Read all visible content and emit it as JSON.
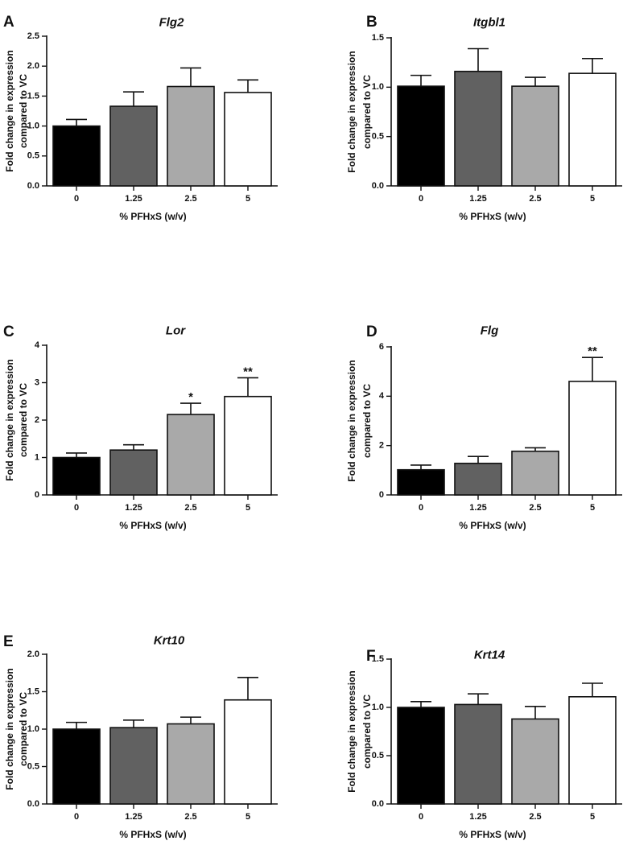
{
  "chart_data": [
    {
      "type": "bar",
      "panel": "A",
      "title": "Flg2",
      "xlabel": "%  PFHxS (w/v)",
      "ylabel_lines": [
        "Fold  change in expression",
        "compared to VC"
      ],
      "categories": [
        "0",
        "1.25",
        "2.5",
        "5"
      ],
      "values": [
        1.0,
        1.33,
        1.66,
        1.56
      ],
      "errors": [
        0.11,
        0.24,
        0.31,
        0.21
      ],
      "significance": [
        "",
        "",
        "",
        ""
      ],
      "ylim": [
        0,
        2.5
      ],
      "yticks": [
        0.0,
        0.5,
        1.0,
        1.5,
        2.0,
        2.5
      ],
      "ytick_labels": [
        "0.0",
        "0.5",
        "1.0",
        "1.5",
        "2.0",
        "2.5"
      ],
      "bar_colors": [
        "#000000",
        "#616161",
        "#a9a9a9",
        "#ffffff"
      ],
      "grid": false
    },
    {
      "type": "bar",
      "panel": "B",
      "title": "Itgbl1",
      "xlabel": "%  PFHxS (w/v)",
      "ylabel_lines": [
        "Fold  change in expression",
        "compared to VC"
      ],
      "categories": [
        "0",
        "1.25",
        "2.5",
        "5"
      ],
      "values": [
        1.01,
        1.16,
        1.01,
        1.14
      ],
      "errors": [
        0.11,
        0.23,
        0.09,
        0.15
      ],
      "significance": [
        "",
        "",
        "",
        ""
      ],
      "ylim": [
        0,
        1.5
      ],
      "yticks": [
        0.0,
        0.5,
        1.0,
        1.5
      ],
      "ytick_labels": [
        "0.0",
        "0.5",
        "1.0",
        "1.5"
      ],
      "bar_colors": [
        "#000000",
        "#616161",
        "#a9a9a9",
        "#ffffff"
      ],
      "grid": false
    },
    {
      "type": "bar",
      "panel": "C",
      "title": "Lor",
      "xlabel": "%  PFHxS (w/v)",
      "ylabel_lines": [
        "Fold  change in expression",
        "compared to VC"
      ],
      "categories": [
        "0",
        "1.25",
        "2.5",
        "5"
      ],
      "values": [
        1.0,
        1.2,
        2.15,
        2.63
      ],
      "errors": [
        0.12,
        0.14,
        0.3,
        0.5
      ],
      "significance": [
        "",
        "",
        "*",
        "**"
      ],
      "ylim": [
        0,
        4
      ],
      "yticks": [
        0,
        1,
        2,
        3,
        4
      ],
      "ytick_labels": [
        "0",
        "1",
        "2",
        "3",
        "4"
      ],
      "bar_colors": [
        "#000000",
        "#616161",
        "#a9a9a9",
        "#ffffff"
      ],
      "grid": false
    },
    {
      "type": "bar",
      "panel": "D",
      "title": "Flg",
      "xlabel": "%  PFHxS (w/v)",
      "ylabel_lines": [
        "Fold  change in expression",
        "compared to VC"
      ],
      "categories": [
        "0",
        "1.25",
        "2.5",
        "5"
      ],
      "values": [
        1.02,
        1.28,
        1.77,
        4.6
      ],
      "errors": [
        0.19,
        0.28,
        0.14,
        0.97
      ],
      "significance": [
        "",
        "",
        "",
        "**"
      ],
      "ylim": [
        0,
        6
      ],
      "yticks": [
        0,
        2,
        4,
        6
      ],
      "ytick_labels": [
        "0",
        "2",
        "4",
        "6"
      ],
      "bar_colors": [
        "#000000",
        "#616161",
        "#a9a9a9",
        "#ffffff"
      ],
      "grid": false
    },
    {
      "type": "bar",
      "panel": "E",
      "title": "Krt10",
      "xlabel": "%  PFHxS (w/v)",
      "ylabel_lines": [
        "Fold  change in expression",
        "compared to VC"
      ],
      "categories": [
        "0",
        "1.25",
        "2.5",
        "5"
      ],
      "values": [
        1.0,
        1.02,
        1.07,
        1.39
      ],
      "errors": [
        0.09,
        0.1,
        0.09,
        0.3
      ],
      "significance": [
        "",
        "",
        "",
        ""
      ],
      "ylim": [
        0,
        2.0
      ],
      "yticks": [
        0.0,
        0.5,
        1.0,
        1.5,
        2.0
      ],
      "ytick_labels": [
        "0.0",
        "0.5",
        "1.0",
        "1.5",
        "2.0"
      ],
      "bar_colors": [
        "#000000",
        "#616161",
        "#a9a9a9",
        "#ffffff"
      ],
      "grid": false
    },
    {
      "type": "bar",
      "panel": "F",
      "title": "Krt14",
      "xlabel": "%  PFHxS (w/v)",
      "ylabel_lines": [
        "Fold  change in expression",
        "compared to VC"
      ],
      "categories": [
        "0",
        "1.25",
        "2.5",
        "5"
      ],
      "values": [
        1.0,
        1.03,
        0.88,
        1.11
      ],
      "errors": [
        0.06,
        0.11,
        0.13,
        0.14
      ],
      "significance": [
        "",
        "",
        "",
        ""
      ],
      "ylim": [
        0,
        1.5
      ],
      "yticks": [
        0.0,
        0.5,
        1.0,
        1.5
      ],
      "ytick_labels": [
        "0.0",
        "0.5",
        "1.0",
        "1.5"
      ],
      "bar_colors": [
        "#000000",
        "#616161",
        "#a9a9a9",
        "#ffffff"
      ],
      "grid": false
    }
  ]
}
